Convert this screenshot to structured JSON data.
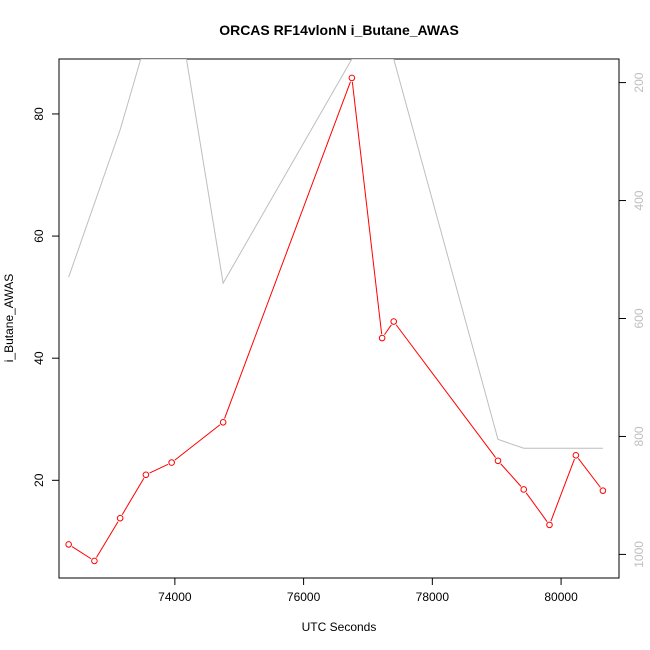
{
  "chart_data": {
    "type": "line",
    "title": "ORCAS RF14vlonN i_Butane_AWAS",
    "xlabel": "UTC Seconds",
    "ylabel": "i_Butane_AWAS",
    "xlim": [
      72200,
      80900
    ],
    "ylim": [
      4,
      89
    ],
    "x_ticks": [
      74000,
      76000,
      78000,
      80000
    ],
    "y_ticks": [
      20,
      40,
      60,
      80
    ],
    "series": [
      {
        "color": "#ff0000",
        "marker": "open-circle",
        "axis": "left",
        "x": [
          72350,
          72750,
          73150,
          73550,
          73950,
          74750,
          76750,
          77220,
          77400,
          79020,
          79420,
          79820,
          80230,
          80650
        ],
        "y": [
          9.5,
          6.8,
          13.8,
          20.9,
          22.9,
          29.5,
          85.9,
          43.3,
          46.0,
          23.2,
          18.5,
          12.7,
          24.1,
          18.3
        ]
      },
      {
        "color": "#bebebe",
        "marker": "none",
        "axis": "right",
        "x": [
          72350,
          73150,
          73470,
          74180,
          74750,
          76750,
          77220,
          77400,
          79020,
          79420,
          80650
        ],
        "y": [
          530,
          280,
          160,
          160,
          540,
          160,
          160,
          160,
          805,
          820,
          820
        ]
      }
    ],
    "right_axis": {
      "ylim": [
        1040,
        160
      ],
      "ticks": [
        200,
        400,
        600,
        800,
        1000
      ]
    },
    "grid": false,
    "legend": "none"
  }
}
